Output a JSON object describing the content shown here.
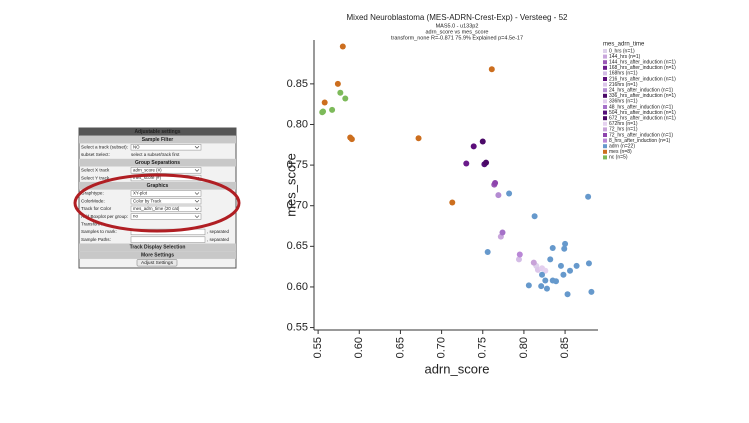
{
  "panel": {
    "title": "Adjustable settings",
    "rows": [
      {
        "heading": "Sample Filter"
      },
      {
        "label": "Select a track (subset):",
        "value": "NO"
      },
      {
        "label": "subset Select:",
        "text": "select a subset/track first"
      },
      {
        "heading": "Group Separations"
      },
      {
        "label": "Select X track",
        "value": "adrn_score (#)"
      },
      {
        "label": "Select Y track",
        "value": "mes_score (#)"
      },
      {
        "heading": "Graphics"
      },
      {
        "label": "Graphtype:",
        "value": "XY-plot"
      },
      {
        "label": "ColorMode:",
        "value": "Color by Track"
      },
      {
        "label": "Track for Color",
        "value": "mes_adrn_time (20 cat)"
      },
      {
        "label": "Add Boxplot per group:",
        "value": "no"
      },
      {
        "label": "Transform:"
      },
      {
        "label": "Samples to mark:",
        "hint": ", separated"
      },
      {
        "label": "Sample Paths:",
        "hint": ", separated"
      },
      {
        "heading": "Track Display Selection"
      },
      {
        "heading": "More Settings"
      },
      {
        "button": "Adjust Settings"
      }
    ]
  },
  "chart_data": {
    "type": "scatter",
    "title": "Mixed Neuroblastoma (MES-ADRN-Crest-Exp) - Versteeg - 52",
    "subtitles": [
      "MAS5.0 - u133p2",
      "adrn_score vs mes_score",
      "transform_none R=-0.871 75.9% Explained p=4.5e-17"
    ],
    "x_label": "adrn_score",
    "y_label": "mes_score",
    "legend_title": "mes_adrn_time",
    "xlim": [
      0.545,
      0.89
    ],
    "ylim": [
      0.547,
      0.904
    ],
    "xticks": [
      0.55,
      {
        "value": 0.6,
        "label": "0.60"
      },
      0.65,
      {
        "value": 0.7,
        "label": "0.70"
      },
      0.75,
      {
        "value": 0.8,
        "label": "0.80"
      },
      0.85
    ],
    "yticks": [
      0.55,
      {
        "value": 0.6,
        "label": "0.60"
      },
      0.65,
      {
        "value": 0.7,
        "label": "0.70"
      },
      0.75,
      {
        "value": 0.8,
        "label": "0.80"
      },
      0.85
    ],
    "series": [
      {
        "name": "0_hrs (n=1)",
        "color": "#ddd0ea",
        "x": [
          0.815
        ],
        "values": [
          0.626
        ]
      },
      {
        "name": "144_hrs (n=1)",
        "color": "#c9a6dc",
        "x": [
          0.772
        ],
        "values": [
          0.662
        ]
      },
      {
        "name": "144_hrs_after_induction (n=1)",
        "color": "#9b59b6",
        "x": [
          0.764
        ],
        "values": [
          0.726
        ]
      },
      {
        "name": "168_hrs_after_induction (n=1)",
        "color": "#6a1b8a",
        "x": [
          0.73
        ],
        "values": [
          0.752
        ]
      },
      {
        "name": "168hrs (n=1)",
        "color": "#d4bce6",
        "x": [
          0.794
        ],
        "values": [
          0.634
        ]
      },
      {
        "name": "216_hrs_after_induction (n=1)",
        "color": "#5c0e7a",
        "x": [
          0.739
        ],
        "values": [
          0.773
        ]
      },
      {
        "name": "216hrs (n=1)",
        "color": "#dcc6ea",
        "x": [
          0.817
        ],
        "values": [
          0.621
        ]
      },
      {
        "name": "24_hrs_after_induction (n=1)",
        "color": "#b48cd2",
        "x": [
          0.769
        ],
        "values": [
          0.713
        ]
      },
      {
        "name": "336_hrs_after_induction (n=1)",
        "color": "#4b0a68",
        "x": [
          0.75
        ],
        "values": [
          0.779
        ]
      },
      {
        "name": "336hrs (n=1)",
        "color": "#e3cfee",
        "x": [
          0.822
        ],
        "values": [
          0.623
        ]
      },
      {
        "name": "48_hrs_after_induction (n=1)",
        "color": "#a571c8",
        "x": [
          0.774
        ],
        "values": [
          0.667
        ]
      },
      {
        "name": "504_hrs_after_induction (n=1)",
        "color": "#55107a",
        "x": [
          0.752
        ],
        "values": [
          0.751
        ]
      },
      {
        "name": "672_hrs_after_induction (n=1)",
        "color": "#4a0866",
        "x": [
          0.754
        ],
        "values": [
          0.753
        ]
      },
      {
        "name": "672hrs (n=1)",
        "color": "#e6d2f0",
        "x": [
          0.826
        ],
        "values": [
          0.62
        ]
      },
      {
        "name": "72_hrs (n=1)",
        "color": "#c8a2d8",
        "x": [
          0.812
        ],
        "values": [
          0.63
        ]
      },
      {
        "name": "72_hrs_after_induction (n=1)",
        "color": "#8e44ad",
        "x": [
          0.765
        ],
        "values": [
          0.728
        ]
      },
      {
        "name": "8_hrs_after_induction (n=1)",
        "color": "#b987d6",
        "x": [
          0.795
        ],
        "values": [
          0.64
        ]
      },
      {
        "name": "adrn (n=22)",
        "color": "#6699cc",
        "x": [
          0.782,
          0.878,
          0.813,
          0.756,
          0.835,
          0.85,
          0.849,
          0.832,
          0.845,
          0.864,
          0.856,
          0.879,
          0.806,
          0.821,
          0.828,
          0.839,
          0.848,
          0.853,
          0.882,
          0.822,
          0.826,
          0.835
        ],
        "values": [
          0.715,
          0.711,
          0.687,
          0.643,
          0.648,
          0.653,
          0.647,
          0.634,
          0.626,
          0.626,
          0.62,
          0.629,
          0.602,
          0.601,
          0.598,
          0.607,
          0.615,
          0.591,
          0.594,
          0.615,
          0.608,
          0.608
        ]
      },
      {
        "name": "mes (n=8)",
        "color": "#cc6e1e",
        "x": [
          0.58,
          0.761,
          0.574,
          0.558,
          0.589,
          0.591,
          0.672,
          0.713
        ],
        "values": [
          0.896,
          0.868,
          0.85,
          0.827,
          0.784,
          0.782,
          0.783,
          0.704
        ]
      },
      {
        "name": "nc (n=5)",
        "color": "#7dba5a",
        "x": [
          0.577,
          0.583,
          0.567,
          0.555,
          0.556
        ],
        "values": [
          0.839,
          0.832,
          0.818,
          0.815,
          0.816
        ]
      }
    ]
  }
}
